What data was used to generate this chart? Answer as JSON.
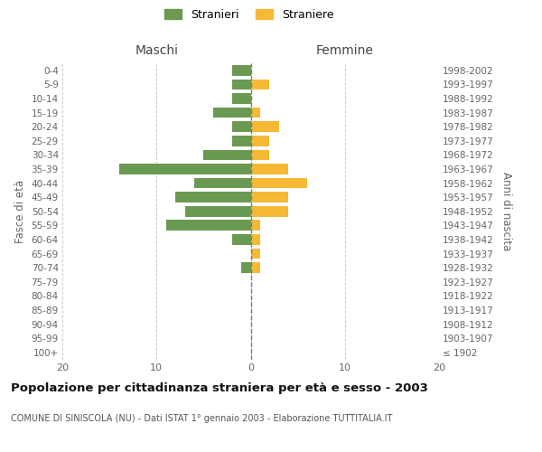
{
  "age_groups": [
    "100+",
    "95-99",
    "90-94",
    "85-89",
    "80-84",
    "75-79",
    "70-74",
    "65-69",
    "60-64",
    "55-59",
    "50-54",
    "45-49",
    "40-44",
    "35-39",
    "30-34",
    "25-29",
    "20-24",
    "15-19",
    "10-14",
    "5-9",
    "0-4"
  ],
  "birth_years": [
    "≤ 1902",
    "1903-1907",
    "1908-1912",
    "1913-1917",
    "1918-1922",
    "1923-1927",
    "1928-1932",
    "1933-1937",
    "1938-1942",
    "1943-1947",
    "1948-1952",
    "1953-1957",
    "1958-1962",
    "1963-1967",
    "1968-1972",
    "1973-1977",
    "1978-1982",
    "1983-1987",
    "1988-1992",
    "1993-1997",
    "1998-2002"
  ],
  "maschi": [
    0,
    0,
    0,
    0,
    0,
    0,
    1,
    0,
    2,
    9,
    7,
    8,
    6,
    14,
    5,
    2,
    2,
    4,
    2,
    2,
    2
  ],
  "femmine": [
    0,
    0,
    0,
    0,
    0,
    0,
    1,
    1,
    1,
    1,
    4,
    4,
    6,
    4,
    2,
    2,
    3,
    1,
    0,
    2,
    0
  ],
  "maschi_color": "#6a9a52",
  "femmine_color": "#f5b935",
  "grid_color": "#cccccc",
  "center_line_color": "#808050",
  "title": "Popolazione per cittadinanza straniera per età e sesso - 2003",
  "subtitle": "COMUNE DI SINISCOLA (NU) - Dati ISTAT 1° gennaio 2003 - Elaborazione TUTTITALIA.IT",
  "xlabel_left": "Maschi",
  "xlabel_right": "Femmine",
  "ylabel_left": "Fasce di età",
  "ylabel_right": "Anni di nascita",
  "xlim": 20,
  "legend_stranieri": "Stranieri",
  "legend_straniere": "Straniere",
  "background_color": "#ffffff",
  "bar_height": 0.75
}
